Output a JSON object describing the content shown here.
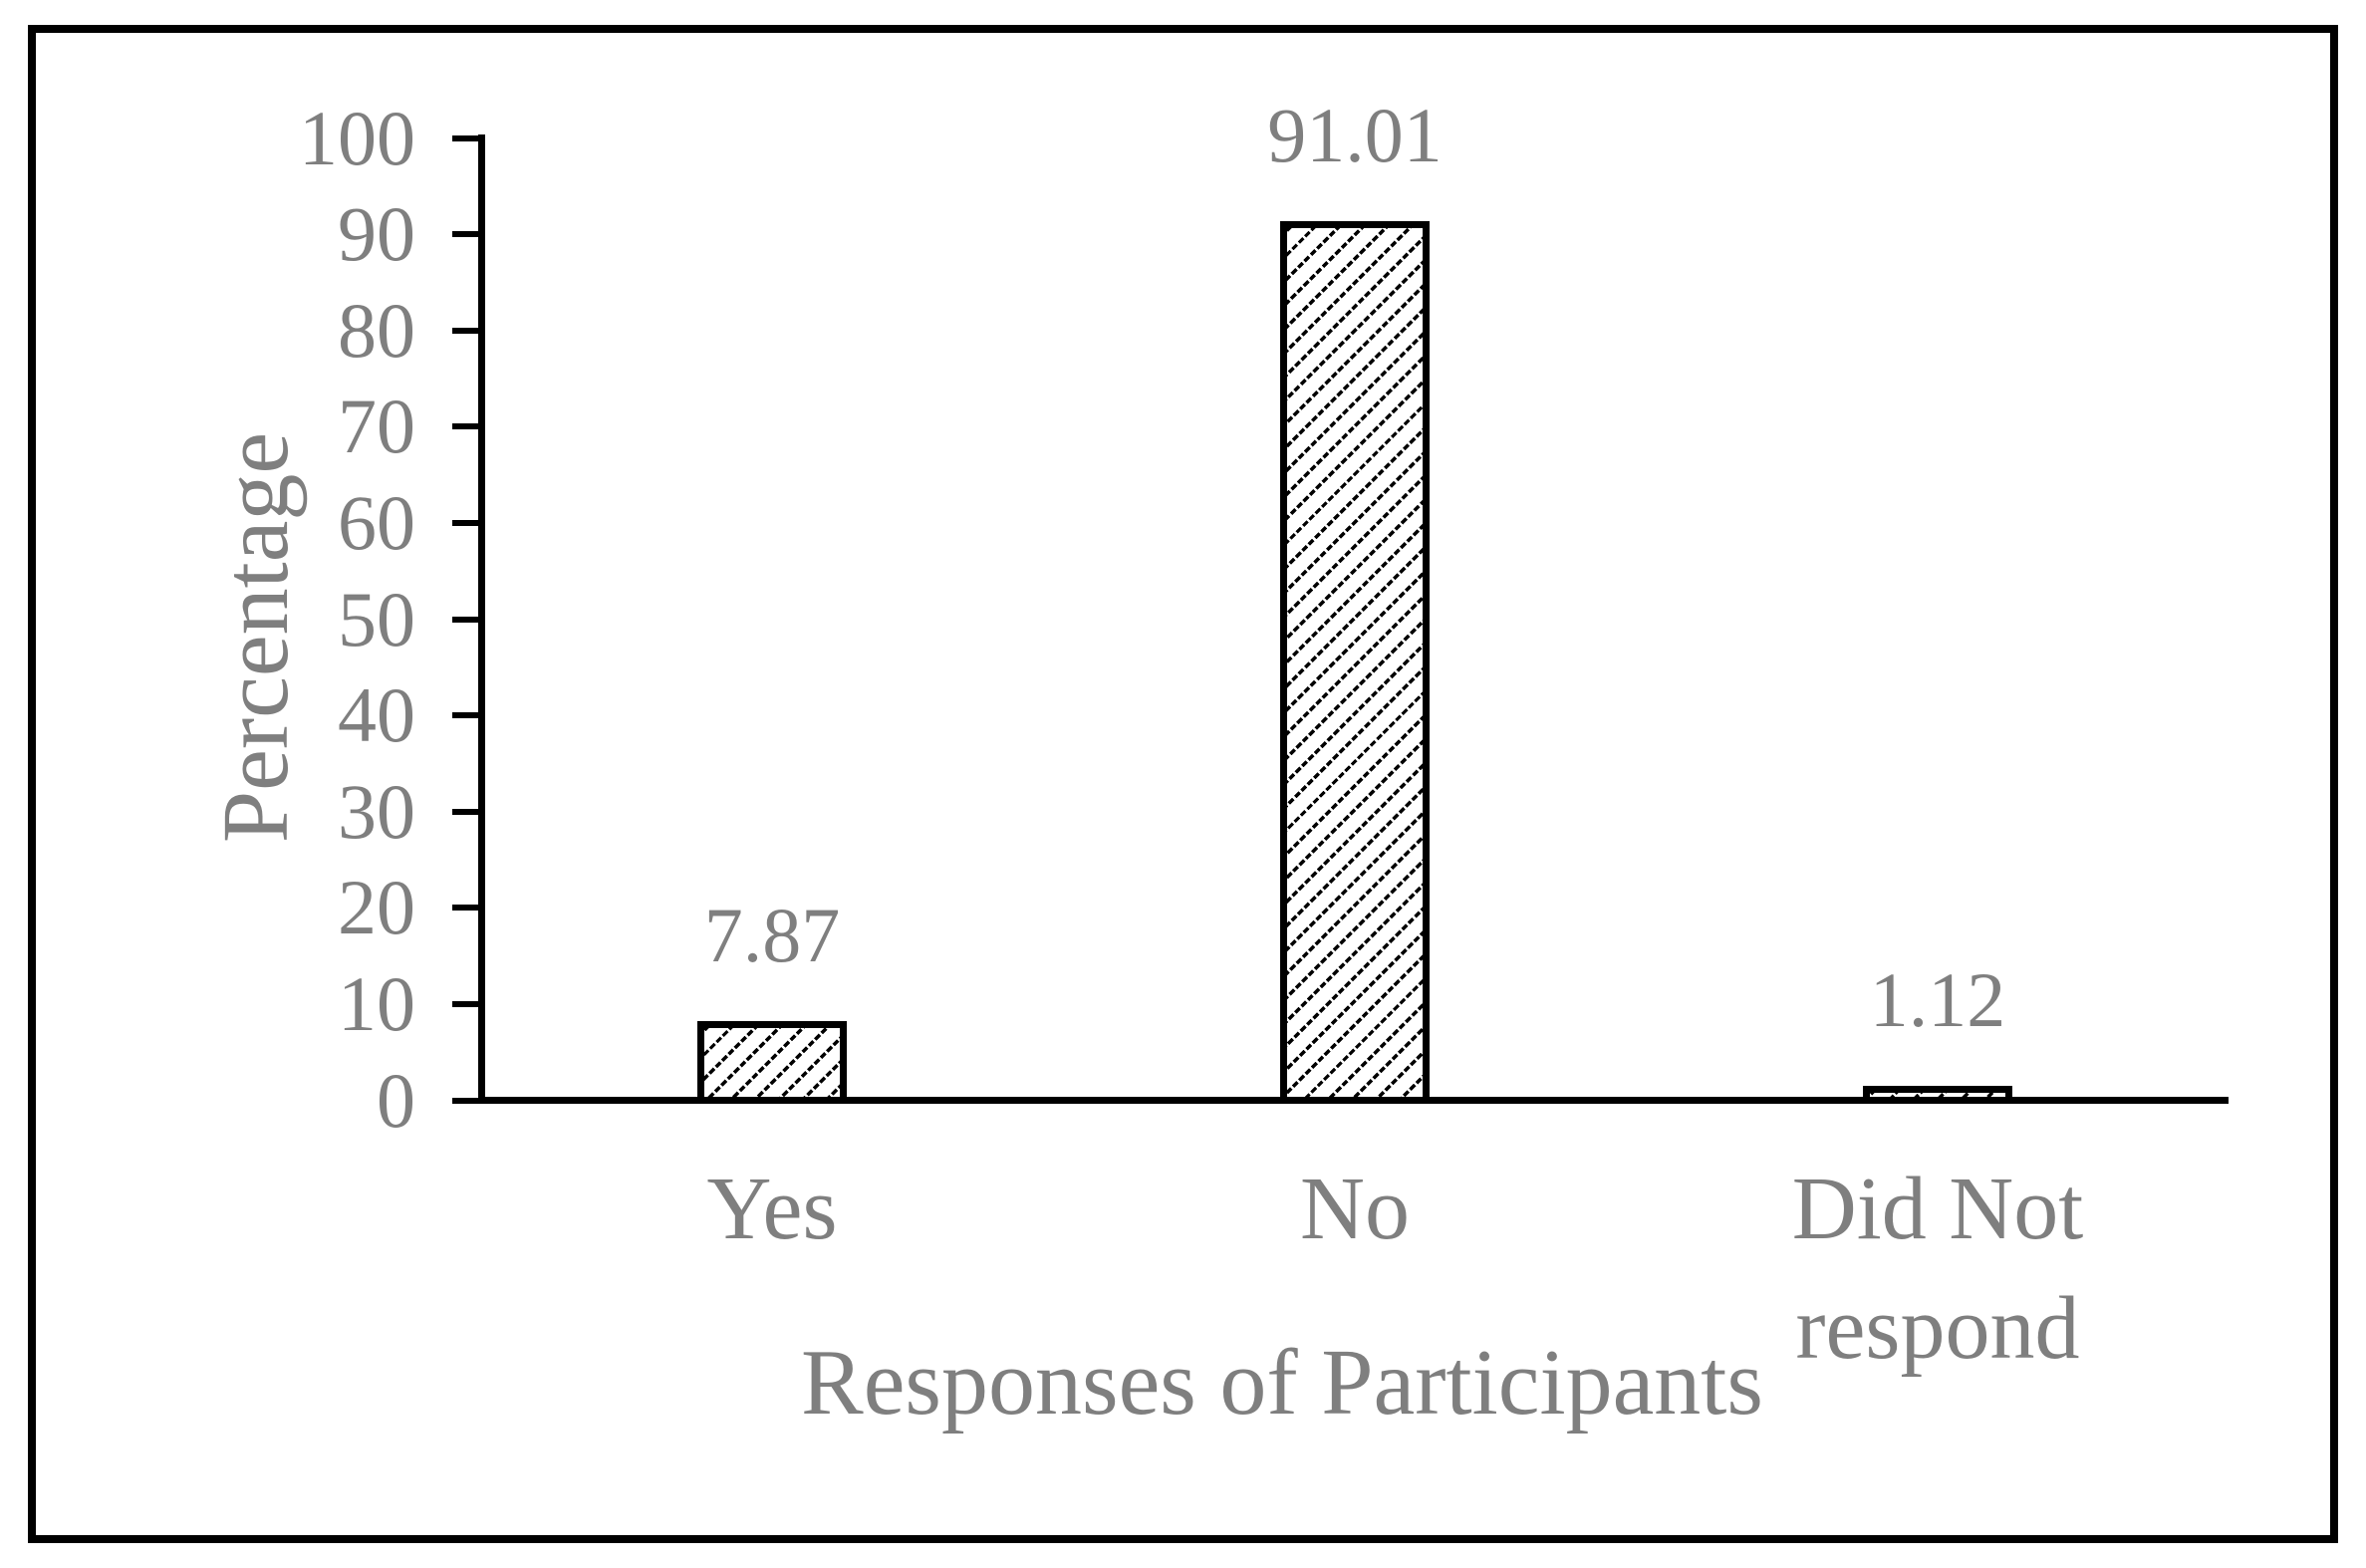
{
  "figure": {
    "background": "#ffffff",
    "border_color": "#000000",
    "text_color": "#7f7f7f",
    "axis_color": "#000000"
  },
  "chart_data": {
    "type": "bar",
    "title": "",
    "categories": [
      "Yes",
      "No",
      "Did Not respond"
    ],
    "values": [
      7.87,
      91.01,
      1.12
    ],
    "data_labels": [
      "7.87",
      "91.01",
      "1.12"
    ],
    "xlabel": "Responses of Participants",
    "ylabel": "Percentage",
    "ylim": [
      0,
      100
    ],
    "yticks": [
      0,
      10,
      20,
      30,
      40,
      50,
      60,
      70,
      80,
      90,
      100
    ],
    "grid": false,
    "legend": false,
    "bar_fill": "diagonal-hatch",
    "bar_fill_color": "#ffffff",
    "bar_hatch_color": "#000000",
    "bar_border_color": "#000000"
  }
}
